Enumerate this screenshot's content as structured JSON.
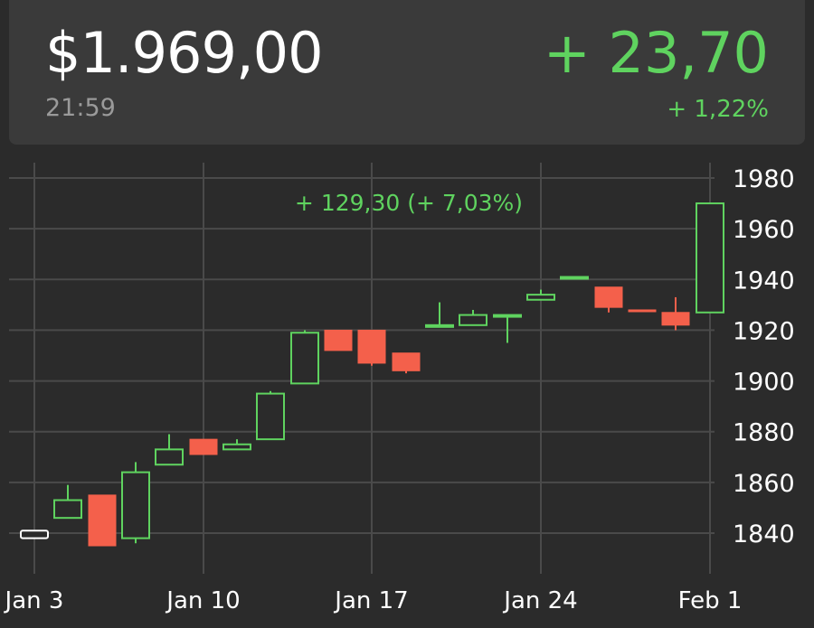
{
  "header": {
    "price": "$1.969,00",
    "time": "21:59",
    "change": "+ 23,70",
    "change_pct": "+ 1,22%"
  },
  "colors": {
    "up": "#5fd35f",
    "down": "#f4604b",
    "flat": "#ffffff",
    "grid": "#4a4a4a",
    "text": "#ffffff",
    "background": "#2b2b2b",
    "card": "#3a3a3a"
  },
  "chart_data": {
    "type": "candlestick",
    "annotation": "+ 129,30 (+ 7,03%)",
    "ylim": [
      1827,
      1985
    ],
    "y_ticks": [
      1840,
      1860,
      1880,
      1900,
      1920,
      1940,
      1960,
      1980
    ],
    "x_tick_labels": [
      "Jan 3",
      "Jan 10",
      "Jan 17",
      "Jan 24",
      "Feb 1"
    ],
    "grid": true,
    "y_axis_position": "right",
    "candles": [
      {
        "date": "Jan 3",
        "open": 1838,
        "close": 1841,
        "high": 1841,
        "low": 1838,
        "dir": "flat"
      },
      {
        "date": "Jan 4",
        "open": 1846,
        "close": 1853,
        "high": 1859,
        "low": 1846,
        "dir": "up"
      },
      {
        "date": "Jan 5",
        "open": 1855,
        "close": 1835,
        "high": 1855,
        "low": 1835,
        "dir": "down"
      },
      {
        "date": "Jan 6",
        "open": 1838,
        "close": 1864,
        "high": 1868,
        "low": 1836,
        "dir": "up"
      },
      {
        "date": "Jan 7",
        "open": 1867,
        "close": 1873,
        "high": 1879,
        "low": 1867,
        "dir": "up"
      },
      {
        "date": "Jan 10",
        "open": 1877,
        "close": 1871,
        "high": 1877,
        "low": 1871,
        "dir": "down"
      },
      {
        "date": "Jan 11",
        "open": 1873,
        "close": 1875,
        "high": 1877,
        "low": 1873,
        "dir": "up"
      },
      {
        "date": "Jan 12",
        "open": 1877,
        "close": 1895,
        "high": 1896,
        "low": 1877,
        "dir": "up"
      },
      {
        "date": "Jan 13",
        "open": 1899,
        "close": 1919,
        "high": 1920,
        "low": 1899,
        "dir": "up"
      },
      {
        "date": "Jan 14",
        "open": 1920,
        "close": 1912,
        "high": 1920,
        "low": 1912,
        "dir": "down"
      },
      {
        "date": "Jan 18",
        "open": 1920,
        "close": 1907,
        "high": 1920,
        "low": 1906,
        "dir": "down"
      },
      {
        "date": "Jan 19",
        "open": 1911,
        "close": 1904,
        "high": 1911,
        "low": 1903,
        "dir": "down"
      },
      {
        "date": "Jan 20",
        "open": 1922,
        "close": 1922,
        "high": 1931,
        "low": 1922,
        "dir": "up"
      },
      {
        "date": "Jan 21",
        "open": 1922,
        "close": 1926,
        "high": 1928,
        "low": 1922,
        "dir": "up"
      },
      {
        "date": "Jan 24",
        "open": 1926,
        "close": 1926,
        "high": 1926,
        "low": 1915,
        "dir": "up"
      },
      {
        "date": "Jan 25",
        "open": 1932,
        "close": 1934,
        "high": 1936,
        "low": 1932,
        "dir": "up"
      },
      {
        "date": "Jan 26",
        "open": 1941,
        "close": 1941,
        "high": 1941,
        "low": 1940,
        "dir": "up"
      },
      {
        "date": "Jan 27",
        "open": 1937,
        "close": 1929,
        "high": 1937,
        "low": 1927,
        "dir": "down"
      },
      {
        "date": "Jan 28",
        "open": 1928,
        "close": 1928,
        "high": 1928,
        "low": 1928,
        "dir": "down"
      },
      {
        "date": "Jan 31",
        "open": 1927,
        "close": 1922,
        "high": 1933,
        "low": 1920,
        "dir": "down"
      },
      {
        "date": "Feb 1",
        "open": 1927,
        "close": 1970,
        "high": 1970,
        "low": 1927,
        "dir": "up"
      }
    ]
  }
}
